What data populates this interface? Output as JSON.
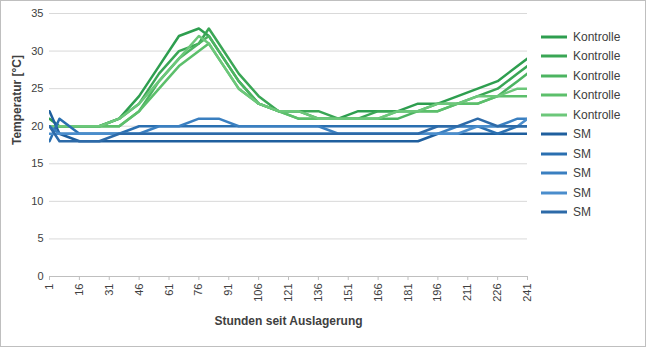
{
  "chart_data": {
    "type": "line",
    "x_label": "Stunden seit Auslagerung",
    "y_label": "Temperatur [°C]",
    "x": [
      1,
      6,
      16,
      26,
      36,
      46,
      56,
      66,
      76,
      81,
      86,
      96,
      106,
      116,
      126,
      136,
      146,
      156,
      166,
      176,
      186,
      196,
      206,
      216,
      226,
      236,
      241
    ],
    "xlim": [
      1,
      241
    ],
    "xticks": [
      1,
      16,
      31,
      46,
      61,
      76,
      91,
      106,
      121,
      136,
      151,
      166,
      181,
      196,
      211,
      226,
      241
    ],
    "ylim": [
      0,
      35
    ],
    "yticks": [
      0,
      5,
      10,
      15,
      20,
      25,
      30,
      35
    ],
    "grid": true,
    "legend": "right",
    "series": [
      {
        "name": "Kontrolle",
        "color": "#2e9e4f",
        "values": [
          21,
          20,
          20,
          20,
          21,
          24,
          28,
          32,
          33,
          32,
          30,
          26,
          23,
          22,
          22,
          21,
          21,
          22,
          22,
          22,
          23,
          23,
          24,
          25,
          26,
          28,
          29
        ]
      },
      {
        "name": "Kontrolle",
        "color": "#3aa655",
        "values": [
          20,
          20,
          20,
          20,
          21,
          23,
          27,
          30,
          31,
          33,
          31,
          27,
          24,
          22,
          22,
          22,
          21,
          21,
          22,
          22,
          22,
          23,
          23,
          24,
          25,
          27,
          28
        ]
      },
      {
        "name": "Kontrolle",
        "color": "#4cb461",
        "values": [
          20,
          20,
          20,
          20,
          20,
          22,
          26,
          29,
          31,
          32,
          30,
          26,
          23,
          22,
          21,
          21,
          21,
          21,
          21,
          21,
          22,
          22,
          23,
          23,
          24,
          26,
          27
        ]
      },
      {
        "name": "Kontrolle",
        "color": "#5cbf6b",
        "values": [
          20,
          20,
          20,
          20,
          20,
          22,
          25,
          28,
          30,
          31,
          29,
          25,
          23,
          22,
          21,
          21,
          21,
          21,
          21,
          22,
          22,
          22,
          23,
          23,
          24,
          24,
          24
        ]
      },
      {
        "name": "Kontrolle",
        "color": "#6cc77a",
        "values": [
          20,
          20,
          20,
          20,
          21,
          23,
          26,
          29,
          32,
          31,
          29,
          25,
          23,
          22,
          22,
          21,
          21,
          21,
          21,
          22,
          22,
          23,
          23,
          24,
          24,
          25,
          25
        ]
      },
      {
        "name": "SM",
        "color": "#1f5f9e",
        "values": [
          22,
          19,
          18,
          18,
          18,
          18,
          18,
          18,
          18,
          18,
          18,
          18,
          18,
          18,
          18,
          18,
          18,
          18,
          18,
          18,
          18,
          19,
          19,
          19,
          19,
          19,
          19
        ]
      },
      {
        "name": "SM",
        "color": "#2a6fb0",
        "values": [
          18,
          21,
          19,
          19,
          19,
          20,
          20,
          20,
          20,
          20,
          20,
          20,
          20,
          20,
          20,
          20,
          20,
          20,
          20,
          20,
          20,
          20,
          20,
          20,
          19,
          20,
          20
        ]
      },
      {
        "name": "SM",
        "color": "#3a7fc0",
        "values": [
          20,
          19,
          19,
          19,
          19,
          19,
          20,
          20,
          21,
          21,
          21,
          20,
          20,
          20,
          20,
          20,
          19,
          19,
          19,
          19,
          19,
          19,
          20,
          20,
          20,
          21,
          21
        ]
      },
      {
        "name": "SM",
        "color": "#4a8dcc",
        "values": [
          19,
          19,
          19,
          19,
          19,
          19,
          19,
          19,
          19,
          19,
          19,
          19,
          19,
          19,
          19,
          19,
          19,
          19,
          19,
          19,
          19,
          19,
          19,
          20,
          20,
          20,
          21
        ]
      },
      {
        "name": "SM",
        "color": "#2d6aa8",
        "values": [
          20,
          18,
          18,
          18,
          19,
          19,
          19,
          19,
          19,
          19,
          19,
          19,
          19,
          19,
          19,
          19,
          19,
          19,
          19,
          19,
          19,
          20,
          20,
          21,
          20,
          20,
          20
        ]
      }
    ]
  }
}
